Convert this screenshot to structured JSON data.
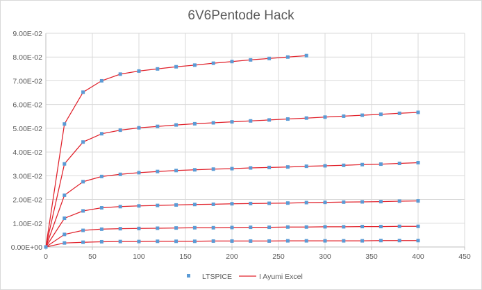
{
  "chart_data": {
    "type": "scatter",
    "title": "6V6Pentode Hack",
    "xlabel": "",
    "ylabel": "",
    "xlim": [
      0,
      450
    ],
    "ylim": [
      0,
      0.09
    ],
    "x_ticks": [
      "0",
      "50",
      "100",
      "150",
      "200",
      "250",
      "300",
      "350",
      "400",
      "450"
    ],
    "y_ticks": [
      "0.00E+00",
      "1.00E-02",
      "2.00E-02",
      "3.00E-02",
      "4.00E-02",
      "5.00E-02",
      "6.00E-02",
      "7.00E-02",
      "8.00E-02",
      "9.00E-02"
    ],
    "grid": "major gridlines",
    "legend_position": "bottom",
    "colors": {
      "marker": "#5b9bd5",
      "line": "#e0202a",
      "grid": "#d9d9d9",
      "axis": "#bfbfbf"
    },
    "legend": [
      {
        "label": "LTSPICE",
        "style": "marker"
      },
      {
        "label": "I Ayumi Excel",
        "style": "line"
      }
    ],
    "curves": [
      {
        "x": [
          0,
          20,
          40,
          60,
          80,
          100,
          120,
          140,
          160,
          180,
          200,
          220,
          240,
          260,
          280,
          300,
          320,
          340,
          360,
          380,
          400
        ],
        "y": [
          0,
          0.0017,
          0.002,
          0.0022,
          0.0023,
          0.0023,
          0.0024,
          0.0024,
          0.0024,
          0.0025,
          0.0025,
          0.0025,
          0.0025,
          0.0026,
          0.0026,
          0.0026,
          0.0026,
          0.0026,
          0.0027,
          0.0027,
          0.0027
        ]
      },
      {
        "x": [
          0,
          20,
          40,
          60,
          80,
          100,
          120,
          140,
          160,
          180,
          200,
          220,
          240,
          260,
          280,
          300,
          320,
          340,
          360,
          380,
          400
        ],
        "y": [
          0,
          0.0053,
          0.007,
          0.0075,
          0.0077,
          0.0078,
          0.0079,
          0.008,
          0.0081,
          0.0081,
          0.0082,
          0.0083,
          0.0083,
          0.0084,
          0.0084,
          0.0085,
          0.0085,
          0.0086,
          0.0086,
          0.0087,
          0.0087
        ]
      },
      {
        "x": [
          0,
          20,
          40,
          60,
          80,
          100,
          120,
          140,
          160,
          180,
          200,
          220,
          240,
          260,
          280,
          300,
          320,
          340,
          360,
          380,
          400
        ],
        "y": [
          0,
          0.0121,
          0.0152,
          0.0165,
          0.017,
          0.0173,
          0.0175,
          0.0177,
          0.0179,
          0.018,
          0.0182,
          0.0183,
          0.0184,
          0.0185,
          0.0187,
          0.0188,
          0.0189,
          0.019,
          0.0191,
          0.0193,
          0.0194
        ]
      },
      {
        "x": [
          0,
          20,
          40,
          60,
          80,
          100,
          120,
          140,
          160,
          180,
          200,
          220,
          240,
          260,
          280,
          300,
          320,
          340,
          360,
          380,
          400
        ],
        "y": [
          0,
          0.0218,
          0.0275,
          0.0297,
          0.0306,
          0.0313,
          0.0318,
          0.0322,
          0.0325,
          0.0328,
          0.033,
          0.0333,
          0.0335,
          0.0337,
          0.034,
          0.0342,
          0.0344,
          0.0347,
          0.0349,
          0.0352,
          0.0355
        ]
      },
      {
        "x": [
          0,
          20,
          40,
          60,
          80,
          100,
          120,
          140,
          160,
          180,
          200,
          220,
          240,
          260,
          280,
          300,
          320,
          340,
          360,
          380,
          400
        ],
        "y": [
          0,
          0.035,
          0.0442,
          0.0477,
          0.0492,
          0.0502,
          0.0508,
          0.0514,
          0.0519,
          0.0523,
          0.0527,
          0.0531,
          0.0535,
          0.0539,
          0.0543,
          0.0547,
          0.0551,
          0.0555,
          0.0559,
          0.0563,
          0.0567
        ]
      },
      {
        "x": [
          0,
          20,
          40,
          60,
          80,
          100,
          120,
          140,
          160,
          180,
          200,
          220,
          240,
          260,
          280
        ],
        "y": [
          0,
          0.0518,
          0.0652,
          0.07,
          0.0728,
          0.0741,
          0.075,
          0.0759,
          0.0766,
          0.0774,
          0.0781,
          0.0788,
          0.0794,
          0.08,
          0.0806
        ]
      }
    ]
  }
}
